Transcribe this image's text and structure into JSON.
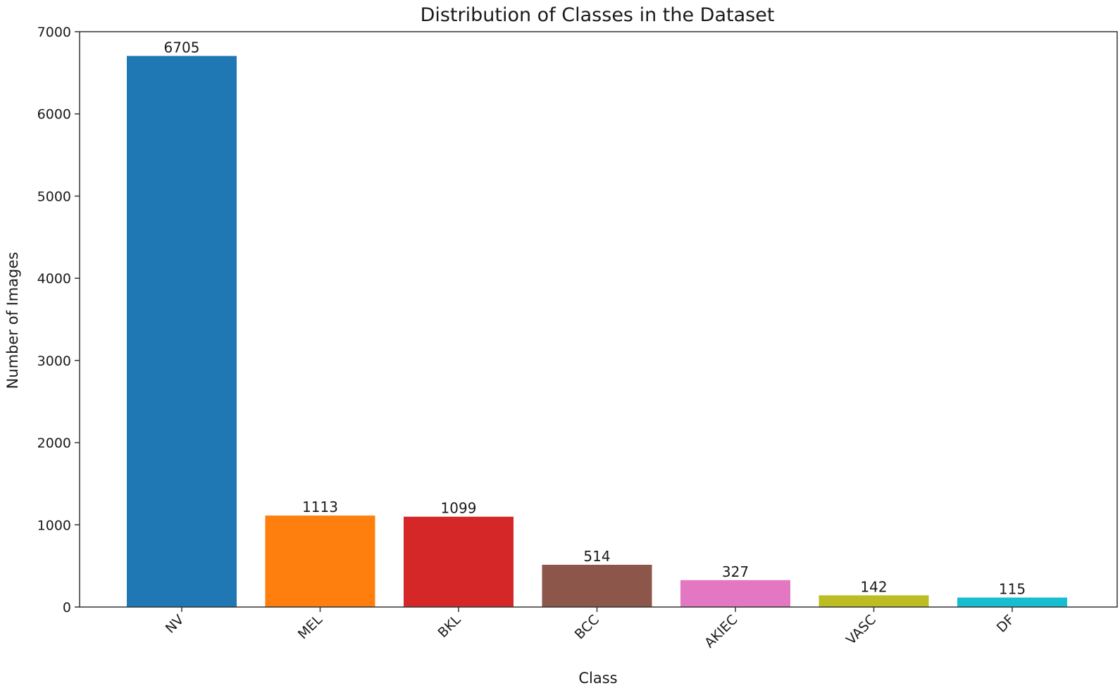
{
  "chart_data": {
    "type": "bar",
    "title": "Distribution of Classes in the Dataset",
    "xlabel": "Class",
    "ylabel": "Number of Images",
    "categories": [
      "NV",
      "MEL",
      "BKL",
      "BCC",
      "AKIEC",
      "VASC",
      "DF"
    ],
    "values": [
      6705,
      1113,
      1099,
      514,
      327,
      142,
      115
    ],
    "data_labels": [
      "6705",
      "1113",
      "1099",
      "514",
      "327",
      "142",
      "115"
    ],
    "colors": [
      "#1f77b4",
      "#ff7f0e",
      "#d62728",
      "#8c564b",
      "#e377c2",
      "#bcbd22",
      "#17becf"
    ],
    "ylim": [
      0,
      7000
    ],
    "yticks": [
      0,
      1000,
      2000,
      3000,
      4000,
      5000,
      6000,
      7000
    ],
    "ytick_labels": [
      "0",
      "1000",
      "2000",
      "3000",
      "4000",
      "5000",
      "6000",
      "7000"
    ],
    "grid": false,
    "legend": "none"
  }
}
